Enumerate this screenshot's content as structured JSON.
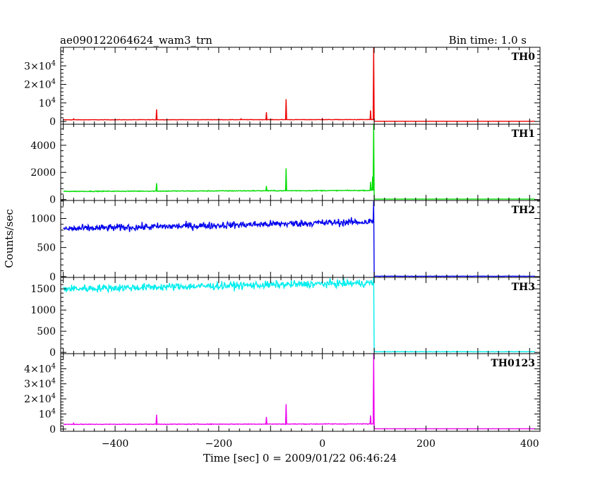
{
  "header": {
    "title_left": "ae090122064624_wam3_trn",
    "title_right": "Bin time: 1.0 s"
  },
  "xlabel": "Time [sec] 0 = 2009/01/22 06:46:24",
  "ylabel": "Counts/sec",
  "chart_data": {
    "type": "line",
    "bin_time_s": 1.0,
    "xlim": [
      -505,
      420
    ],
    "x_ticks": [
      -400,
      -200,
      0,
      200,
      400
    ],
    "x_tick_labels": [
      "−400",
      "−200",
      "0",
      "200",
      "400"
    ],
    "panels": [
      {
        "name": "TH0",
        "color": "#ee0000",
        "ylim": [
          -1500,
          40000
        ],
        "y_ticks": [
          0,
          10000,
          20000,
          30000
        ],
        "y_tick_labels": [
          {
            "base": "0",
            "exp": ""
          },
          {
            "base": "10",
            "exp": "4"
          },
          {
            "base": "2×10",
            "exp": "4"
          },
          {
            "base": "3×10",
            "exp": "4"
          }
        ],
        "baseline_start": 900,
        "baseline_end": 1000,
        "noise": 80,
        "spikes": [
          [
            -480,
            1400
          ],
          [
            -320,
            6500
          ],
          [
            -157,
            1400
          ],
          [
            -108,
            5000
          ],
          [
            -70,
            12000
          ],
          [
            0,
            1500
          ],
          [
            93,
            6000
          ],
          [
            99,
            40000
          ]
        ],
        "post_level": 80,
        "burst_time": 100
      },
      {
        "name": "TH1",
        "color": "#00dd00",
        "ylim": [
          -70,
          5550
        ],
        "y_ticks": [
          0,
          2000,
          4000
        ],
        "y_tick_labels": [
          {
            "base": "0",
            "exp": ""
          },
          {
            "base": "2000",
            "exp": ""
          },
          {
            "base": "4000",
            "exp": ""
          }
        ],
        "baseline_start": 600,
        "baseline_end": 670,
        "noise": 22,
        "spikes": [
          [
            -320,
            1200
          ],
          [
            -108,
            1000
          ],
          [
            -70,
            2300
          ],
          [
            93,
            1300
          ],
          [
            97,
            1700
          ],
          [
            99,
            5600
          ]
        ],
        "post_level": 30,
        "burst_time": 100
      },
      {
        "name": "TH2",
        "color": "#0000ee",
        "ylim": [
          -15,
          1310
        ],
        "y_ticks": [
          0,
          500,
          1000
        ],
        "y_tick_labels": [
          {
            "base": "0",
            "exp": ""
          },
          {
            "base": "500",
            "exp": ""
          },
          {
            "base": "1000",
            "exp": ""
          }
        ],
        "baseline_start": 820,
        "baseline_end": 945,
        "noise": 45,
        "spikes": [
          [
            99,
            1300
          ]
        ],
        "post_level": 5,
        "burst_time": 100
      },
      {
        "name": "TH3",
        "color": "#00eeee",
        "ylim": [
          -30,
          1770
        ],
        "y_ticks": [
          0,
          500,
          1000,
          1500
        ],
        "y_tick_labels": [
          {
            "base": "0",
            "exp": ""
          },
          {
            "base": "500",
            "exp": ""
          },
          {
            "base": "1000",
            "exp": ""
          },
          {
            "base": "1500",
            "exp": ""
          }
        ],
        "baseline_start": 1500,
        "baseline_end": 1640,
        "noise": 65,
        "spikes": [
          [
            99,
            1770
          ]
        ],
        "post_level": 15,
        "burst_time": 100
      },
      {
        "name": "TH0123",
        "color": "#ee00ee",
        "ylim": [
          -1500,
          50000
        ],
        "y_ticks": [
          0,
          10000,
          20000,
          30000,
          40000
        ],
        "y_tick_labels": [
          {
            "base": "0",
            "exp": ""
          },
          {
            "base": "10",
            "exp": "4"
          },
          {
            "base": "2×10",
            "exp": "4"
          },
          {
            "base": "3×10",
            "exp": "4"
          },
          {
            "base": "4×10",
            "exp": "4"
          }
        ],
        "baseline_start": 3100,
        "baseline_end": 3400,
        "noise": 150,
        "spikes": [
          [
            -480,
            3900
          ],
          [
            -320,
            9500
          ],
          [
            -108,
            8000
          ],
          [
            -70,
            16500
          ],
          [
            93,
            9000
          ],
          [
            99,
            50000
          ]
        ],
        "post_level": 180,
        "burst_time": 100
      }
    ]
  }
}
